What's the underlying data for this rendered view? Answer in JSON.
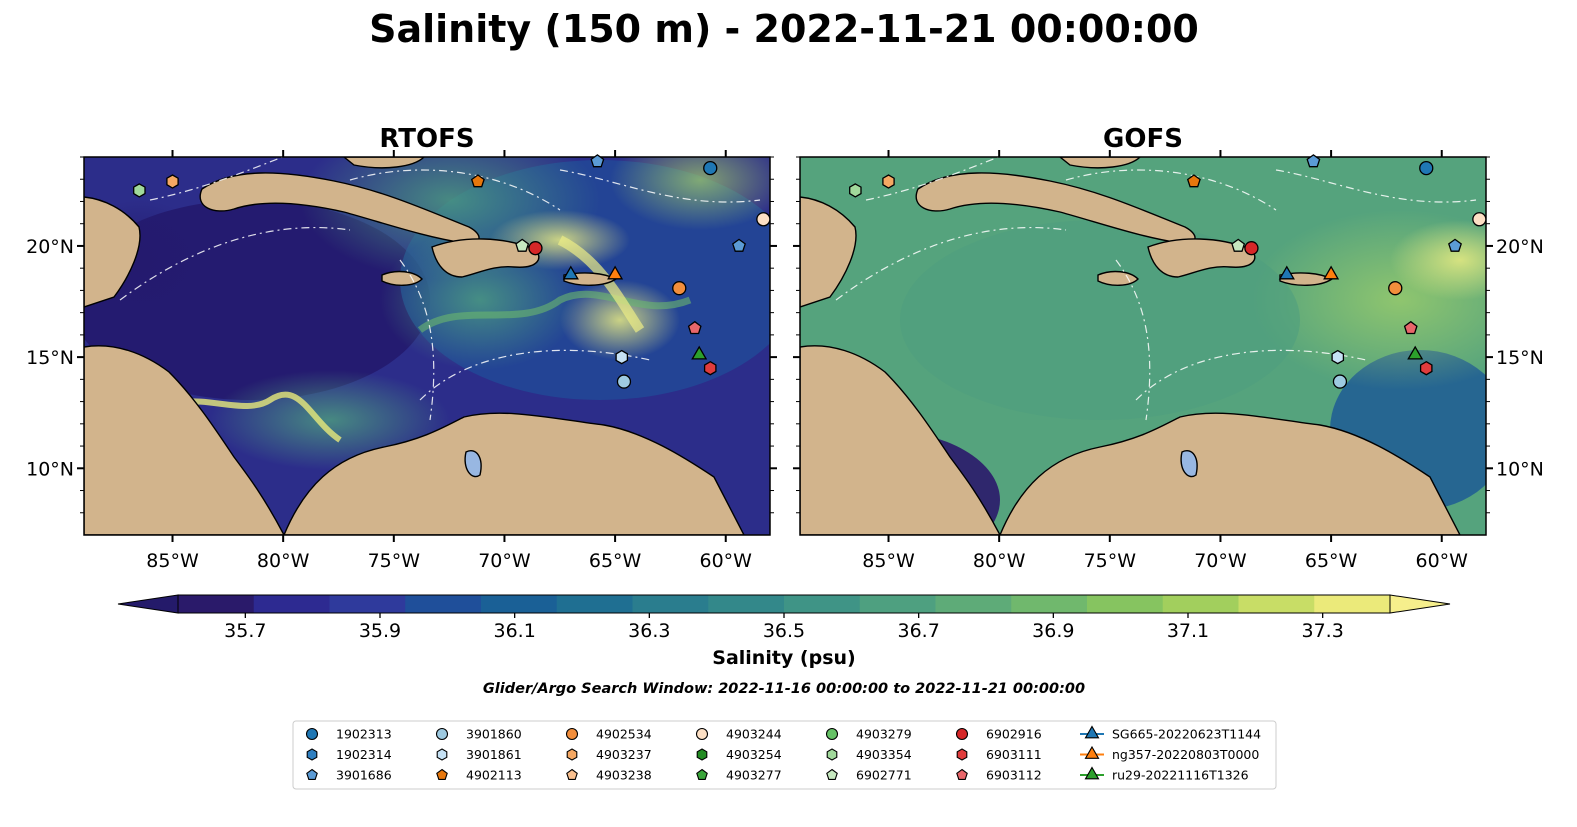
{
  "title": "Salinity (150 m) - 2022-11-21 00:00:00",
  "panels": [
    {
      "id": "rtofs",
      "label": "RTOFS"
    },
    {
      "id": "gofs",
      "label": "GOFS"
    }
  ],
  "axes": {
    "lon_range": [
      -89,
      -58
    ],
    "lat_range": [
      7,
      24
    ],
    "lon_ticks": [
      "85°W",
      "80°W",
      "75°W",
      "70°W",
      "65°W",
      "60°W"
    ],
    "lat_ticks": [
      "20°N",
      "15°N",
      "10°N"
    ]
  },
  "colorbar": {
    "label": "Salinity (psu)",
    "range": [
      35.6,
      37.4
    ],
    "ticks": [
      "35.7",
      "35.9",
      "36.1",
      "36.3",
      "36.5",
      "36.7",
      "36.9",
      "37.1",
      "37.3"
    ],
    "colors": [
      "#2a1a6a",
      "#2d2a91",
      "#2f3a9c",
      "#1f4f9a",
      "#1a6096",
      "#1f6f92",
      "#2a7d8e",
      "#33888a",
      "#3f9486",
      "#4ea080",
      "#5eab78",
      "#70b86d",
      "#86c460",
      "#a2cf5d",
      "#c8dd66",
      "#ebea7a"
    ]
  },
  "note": "Glider/Argo Search Window: 2022-11-16 00:00:00 to 2022-11-21 00:00:00",
  "legend": [
    {
      "label": "1902313",
      "marker": "circle",
      "color": "#1f77b4"
    },
    {
      "label": "1902314",
      "marker": "hexagon",
      "color": "#2f7fc0"
    },
    {
      "label": "3901686",
      "marker": "pentagon",
      "color": "#5b9bd5"
    },
    {
      "label": "3901860",
      "marker": "circle",
      "color": "#9ecae1"
    },
    {
      "label": "3901861",
      "marker": "hexagon",
      "color": "#c6e2f5"
    },
    {
      "label": "4902113",
      "marker": "pentagon",
      "color": "#e6770d"
    },
    {
      "label": "4902534",
      "marker": "circle",
      "color": "#f28e3c"
    },
    {
      "label": "4903237",
      "marker": "hexagon",
      "color": "#f5a863"
    },
    {
      "label": "4903238",
      "marker": "pentagon",
      "color": "#f9c08f"
    },
    {
      "label": "4903244",
      "marker": "circle",
      "color": "#fde0c5"
    },
    {
      "label": "4903254",
      "marker": "hexagon",
      "color": "#228b22"
    },
    {
      "label": "4903277",
      "marker": "pentagon",
      "color": "#3aa53a"
    },
    {
      "label": "4903279",
      "marker": "circle",
      "color": "#66c266"
    },
    {
      "label": "4903354",
      "marker": "hexagon",
      "color": "#a1d99b"
    },
    {
      "label": "6902771",
      "marker": "pentagon",
      "color": "#c7e9c0"
    },
    {
      "label": "6902916",
      "marker": "circle",
      "color": "#d62728"
    },
    {
      "label": "6903111",
      "marker": "hexagon",
      "color": "#e03c3c"
    },
    {
      "label": "6903112",
      "marker": "pentagon",
      "color": "#e8666a"
    },
    {
      "label": "SG665-20220623T1144",
      "marker": "triangle",
      "color": "#1f77b4"
    },
    {
      "label": "ng357-20220803T0000",
      "marker": "triangle",
      "color": "#ff7f0e"
    },
    {
      "label": "ru29-20221116T1326",
      "marker": "triangle",
      "color": "#2ca02c"
    }
  ],
  "points": [
    {
      "label": "4903354",
      "lon": -86.5,
      "lat": 22.5
    },
    {
      "label": "4903237",
      "lon": -85.0,
      "lat": 22.9
    },
    {
      "label": "4902113",
      "lon": -71.2,
      "lat": 22.9
    },
    {
      "label": "3901686",
      "lon": -65.8,
      "lat": 23.8
    },
    {
      "label": "1902313",
      "lon": -60.7,
      "lat": 23.5
    },
    {
      "label": "4903244",
      "lon": -58.3,
      "lat": 21.2
    },
    {
      "label": "6902771",
      "lon": -69.2,
      "lat": 20.0
    },
    {
      "label": "6902916",
      "lon": -68.6,
      "lat": 19.9
    },
    {
      "label": "3901686",
      "lon": -59.4,
      "lat": 20.0
    },
    {
      "label": "SG665-20220623T1144",
      "lon": -67.0,
      "lat": 18.7
    },
    {
      "label": "ng357-20220803T0000",
      "lon": -65.0,
      "lat": 18.7
    },
    {
      "label": "4902534",
      "lon": -62.1,
      "lat": 18.1
    },
    {
      "label": "6903112",
      "lon": -61.4,
      "lat": 16.3
    },
    {
      "label": "ru29-20221116T1326",
      "lon": -61.2,
      "lat": 15.1
    },
    {
      "label": "6903111",
      "lon": -60.7,
      "lat": 14.5
    },
    {
      "label": "3901861",
      "lon": -64.7,
      "lat": 15.0
    },
    {
      "label": "3901860",
      "lon": -64.6,
      "lat": 13.9
    }
  ]
}
